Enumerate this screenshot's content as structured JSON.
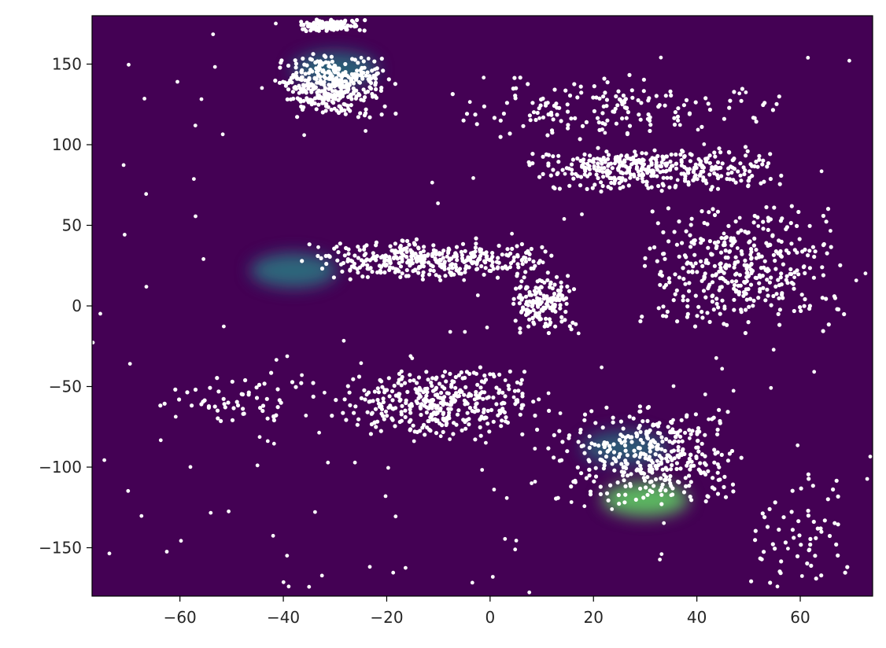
{
  "chart_data": {
    "type": "scatter",
    "title": "",
    "xlabel": "",
    "ylabel": "",
    "xlim": [
      -77,
      74
    ],
    "ylim": [
      -180,
      180
    ],
    "xticks": [
      -60,
      -40,
      -20,
      0,
      20,
      40,
      60
    ],
    "xtick_labels": [
      "−60",
      "−40",
      "−20",
      "0",
      "20",
      "40",
      "60"
    ],
    "yticks": [
      150,
      100,
      50,
      0,
      -50,
      -100,
      -150
    ],
    "ytick_labels": [
      "150",
      "100",
      "50",
      "0",
      "−50",
      "−100",
      "−150"
    ],
    "grid": false,
    "legend": "none",
    "colors": {
      "background_density": "#440154",
      "density_low": "#3b528b",
      "density_mid": "#21918c",
      "density_high": "#5ec962",
      "points": "#ffffff",
      "axes": "#000000"
    },
    "density_background": {
      "description_units": "data",
      "hotspots": [
        {
          "x": -30,
          "y": 147,
          "level": 0.35
        },
        {
          "x": -38,
          "y": 22,
          "level": 0.4
        },
        {
          "x": 30,
          "y": -120,
          "level": 0.6
        },
        {
          "x": 26,
          "y": -88,
          "level": 0.3
        }
      ]
    },
    "clusters": [
      {
        "x": [
          -42,
          -18
        ],
        "y": [
          115,
          157
        ],
        "density": "dense"
      },
      {
        "x": [
          -38,
          -24
        ],
        "y": [
          170,
          178
        ],
        "density": "medium"
      },
      {
        "x": [
          -11,
          60
        ],
        "y": [
          100,
          145
        ],
        "density": "medium"
      },
      {
        "x": [
          5,
          58
        ],
        "y": [
          70,
          100
        ],
        "density": "dense"
      },
      {
        "x": [
          -37,
          14
        ],
        "y": [
          15,
          42
        ],
        "density": "dense"
      },
      {
        "x": [
          4,
          17
        ],
        "y": [
          -18,
          20
        ],
        "density": "medium"
      },
      {
        "x": [
          28,
          70
        ],
        "y": [
          -20,
          65
        ],
        "density": "dense"
      },
      {
        "x": [
          -68,
          -30
        ],
        "y": [
          -75,
          -40
        ],
        "density": "sparse"
      },
      {
        "x": [
          -30,
          10
        ],
        "y": [
          -85,
          -35
        ],
        "density": "dense"
      },
      {
        "x": [
          10,
          50
        ],
        "y": [
          -125,
          -60
        ],
        "density": "dense"
      },
      {
        "x": [
          48,
          72
        ],
        "y": [
          -175,
          -100
        ],
        "density": "sparse"
      }
    ]
  }
}
